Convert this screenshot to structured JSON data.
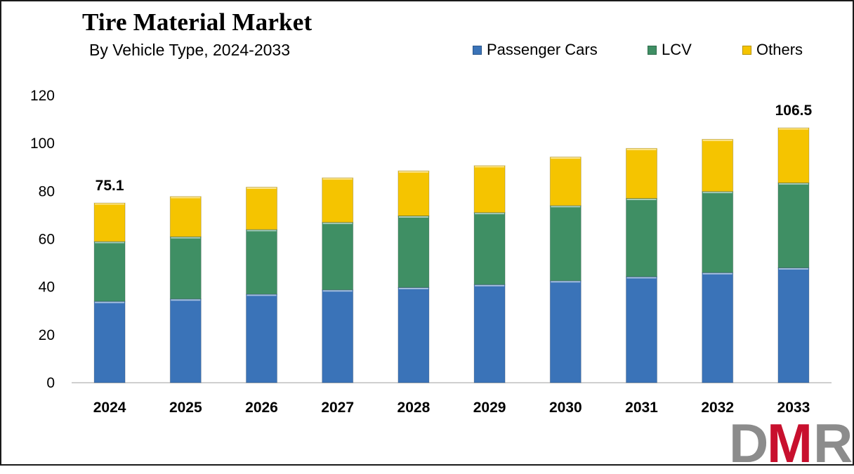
{
  "title": "Tire Material Market",
  "subtitle": "By Vehicle Type, 2024-2033",
  "legend": [
    {
      "label": "Passenger Cars",
      "color": "#3a73b8"
    },
    {
      "label": "LCV",
      "color": "#3f8f64"
    },
    {
      "label": "Others",
      "color": "#f5c400"
    }
  ],
  "logo": {
    "text": "DMR",
    "colors": [
      "#8c8c8c",
      "#c8102e",
      "#8c8c8c"
    ]
  },
  "chart_data": {
    "type": "bar",
    "stacked": true,
    "title": "Tire Material Market",
    "subtitle": "By Vehicle Type, 2024-2033",
    "xlabel": "",
    "ylabel": "",
    "categories": [
      "2024",
      "2025",
      "2026",
      "2027",
      "2028",
      "2029",
      "2030",
      "2031",
      "2032",
      "2033"
    ],
    "series": [
      {
        "name": "Passenger Cars",
        "color": "#3a73b8",
        "values": [
          34.0,
          35.0,
          37.0,
          38.8,
          39.8,
          41.0,
          42.6,
          44.3,
          46.0,
          48.0
        ]
      },
      {
        "name": "LCV",
        "color": "#3f8f64",
        "values": [
          25.0,
          26.0,
          27.0,
          28.2,
          29.9,
          30.1,
          31.4,
          32.7,
          33.9,
          35.5
        ]
      },
      {
        "name": "Others",
        "color": "#f5c400",
        "values": [
          16.1,
          16.8,
          17.7,
          18.6,
          18.8,
          19.6,
          20.3,
          20.9,
          21.8,
          23.0
        ]
      }
    ],
    "yticks": [
      "0",
      "20",
      "40",
      "60",
      "80",
      "100",
      "120"
    ],
    "ylim": [
      0,
      120
    ],
    "grid": false,
    "legend_position": "top-right",
    "data_labels": [
      {
        "category": "2024",
        "text": "75.1"
      },
      {
        "category": "2033",
        "text": "106.5"
      }
    ]
  }
}
